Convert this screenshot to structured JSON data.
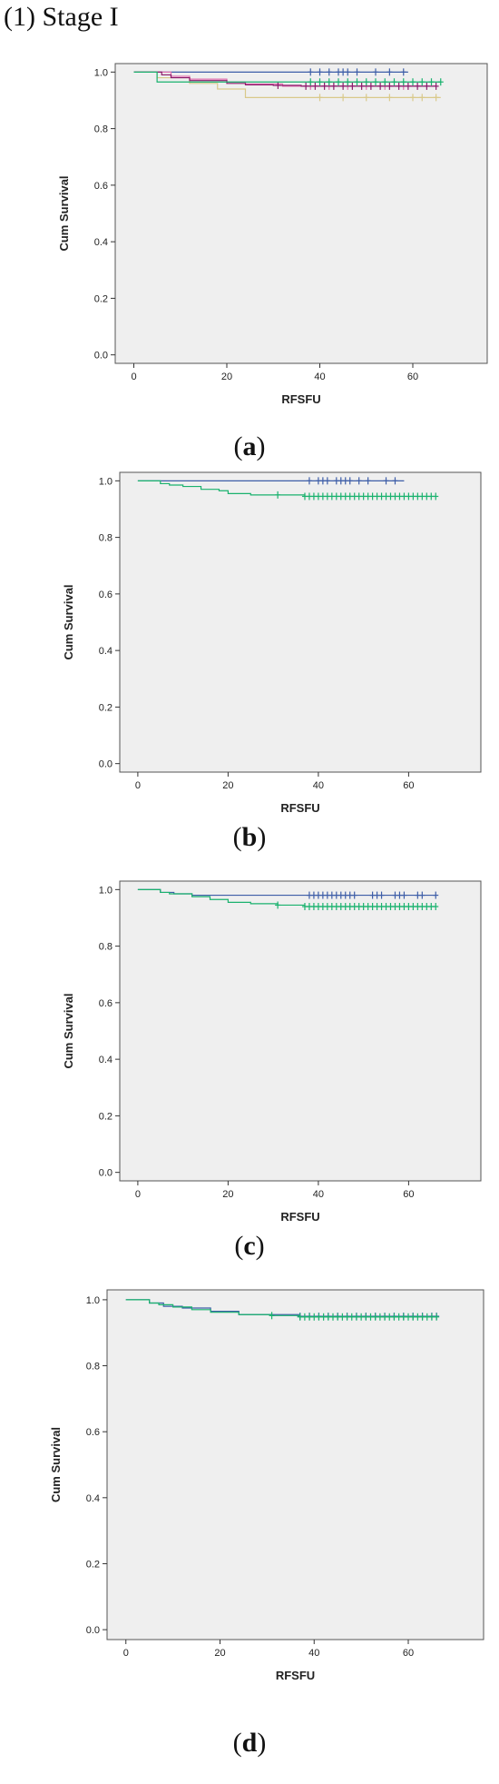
{
  "heading": "(1) Stage I",
  "colors": {
    "blue": "#3e5ea8",
    "green": "#1ab26e",
    "tan": "#d9c98a",
    "purple": "#8b1a6b",
    "pink": "#e070b0",
    "plot_bg": "#efefef",
    "frame": "#555555"
  },
  "chart_data": [
    {
      "type": "line",
      "caption_open": "(",
      "caption_letter": "a",
      "caption_close": ")",
      "xlabel": "RFSFU",
      "ylabel": "Cum Survival",
      "xlim": [
        -4,
        76
      ],
      "ylim": [
        -0.03,
        1.03
      ],
      "xticks": [
        0,
        20,
        40,
        60
      ],
      "yticks": [
        "0.0",
        "0.2",
        "0.4",
        "0.6",
        "0.8",
        "1.0"
      ],
      "series": [
        {
          "color": "#3e5ea8",
          "x": [
            0,
            59
          ],
          "y": [
            1.0,
            1.0
          ],
          "censor": [
            38,
            40,
            42,
            44,
            45,
            46,
            48,
            52,
            55,
            58
          ]
        },
        {
          "color": "#d9c98a",
          "x": [
            0,
            5,
            12,
            18,
            24,
            66
          ],
          "y": [
            1.0,
            0.98,
            0.96,
            0.94,
            0.91,
            0.91
          ],
          "censor": [
            40,
            45,
            50,
            55,
            60,
            62,
            65
          ]
        },
        {
          "color": "#e070b0",
          "x": [
            0,
            8,
            12,
            20,
            24,
            32,
            62
          ],
          "y": [
            1.0,
            0.985,
            0.975,
            0.965,
            0.958,
            0.95,
            0.95
          ],
          "censor": [
            38,
            42,
            46,
            50,
            54,
            58
          ]
        },
        {
          "color": "#8b1a6b",
          "x": [
            0,
            6,
            8,
            12,
            20,
            24,
            30,
            36,
            65
          ],
          "y": [
            1.0,
            0.99,
            0.98,
            0.97,
            0.96,
            0.955,
            0.953,
            0.95,
            0.95
          ],
          "censor": [
            31,
            37,
            39,
            41,
            43,
            45,
            47,
            49,
            51,
            53,
            55,
            57,
            59,
            61,
            63,
            65
          ]
        },
        {
          "color": "#1ab26e",
          "x": [
            0,
            5,
            66
          ],
          "y": [
            1.0,
            0.965,
            0.965
          ],
          "censor": [
            38,
            40,
            42,
            44,
            46,
            48,
            50,
            52,
            54,
            56,
            58,
            60,
            62,
            64,
            66
          ]
        }
      ]
    },
    {
      "type": "line",
      "caption_open": "(",
      "caption_letter": "b",
      "caption_close": ")",
      "xlabel": "RFSFU",
      "ylabel": "Cum Survival",
      "xlim": [
        -4,
        76
      ],
      "ylim": [
        -0.03,
        1.03
      ],
      "xticks": [
        0,
        20,
        40,
        60
      ],
      "yticks": [
        "0.0",
        "0.2",
        "0.4",
        "0.6",
        "0.8",
        "1.0"
      ],
      "series": [
        {
          "color": "#3e5ea8",
          "x": [
            0,
            59
          ],
          "y": [
            1.0,
            1.0
          ],
          "censor": [
            38,
            40,
            41,
            42,
            44,
            45,
            46,
            47,
            49,
            51,
            55,
            57
          ]
        },
        {
          "color": "#1ab26e",
          "x": [
            0,
            5,
            7,
            10,
            14,
            18,
            20,
            25,
            30,
            37,
            66
          ],
          "y": [
            1.0,
            0.99,
            0.985,
            0.98,
            0.97,
            0.965,
            0.955,
            0.95,
            0.95,
            0.945,
            0.945
          ],
          "censor": [
            31,
            37,
            38,
            39,
            40,
            41,
            42,
            43,
            44,
            45,
            46,
            47,
            48,
            49,
            50,
            51,
            52,
            53,
            54,
            55,
            56,
            57,
            58,
            59,
            60,
            61,
            62,
            63,
            64,
            65,
            66
          ]
        }
      ]
    },
    {
      "type": "line",
      "caption_open": "(",
      "caption_letter": "c",
      "caption_close": ")",
      "xlabel": "RFSFU",
      "ylabel": "Cum Survival",
      "xlim": [
        -4,
        76
      ],
      "ylim": [
        -0.03,
        1.03
      ],
      "xticks": [
        0,
        20,
        40,
        60
      ],
      "yticks": [
        "0.0",
        "0.2",
        "0.4",
        "0.6",
        "0.8",
        "1.0"
      ],
      "series": [
        {
          "color": "#3e5ea8",
          "x": [
            0,
            5,
            8,
            12,
            66
          ],
          "y": [
            1.0,
            0.99,
            0.985,
            0.98,
            0.98
          ],
          "censor": [
            38,
            39,
            40,
            41,
            42,
            43,
            44,
            45,
            46,
            47,
            48,
            52,
            53,
            54,
            57,
            58,
            59,
            62,
            63,
            66
          ]
        },
        {
          "color": "#1ab26e",
          "x": [
            0,
            5,
            7,
            12,
            16,
            20,
            25,
            31,
            37,
            66
          ],
          "y": [
            1.0,
            0.99,
            0.985,
            0.975,
            0.965,
            0.955,
            0.95,
            0.945,
            0.94,
            0.94
          ],
          "censor": [
            31,
            37,
            38,
            39,
            40,
            41,
            42,
            43,
            44,
            45,
            46,
            47,
            48,
            49,
            50,
            51,
            52,
            53,
            54,
            55,
            56,
            57,
            58,
            59,
            60,
            61,
            62,
            63,
            64,
            65,
            66
          ]
        }
      ]
    },
    {
      "type": "line",
      "caption_open": "(",
      "caption_letter": "d",
      "caption_close": ")",
      "xlabel": "RFSFU",
      "ylabel": "Cum Survival",
      "xlim": [
        -4,
        76
      ],
      "ylim": [
        -0.03,
        1.03
      ],
      "xticks": [
        0,
        20,
        40,
        60
      ],
      "yticks": [
        "0.0",
        "0.2",
        "0.4",
        "0.6",
        "0.8",
        "1.0"
      ],
      "series": [
        {
          "color": "#3e5ea8",
          "x": [
            0,
            5,
            8,
            12,
            18,
            24,
            37,
            66
          ],
          "y": [
            1.0,
            0.99,
            0.98,
            0.975,
            0.965,
            0.955,
            0.95,
            0.95
          ],
          "censor": [
            37,
            39,
            41,
            43,
            45,
            47,
            49,
            51,
            53,
            55,
            57,
            59,
            61,
            63,
            65,
            66
          ]
        },
        {
          "color": "#1ab26e",
          "x": [
            0,
            5,
            7,
            10,
            14,
            18,
            24,
            31,
            37,
            66
          ],
          "y": [
            1.0,
            0.99,
            0.985,
            0.978,
            0.97,
            0.962,
            0.955,
            0.952,
            0.948,
            0.948
          ],
          "censor": [
            31,
            37,
            38,
            39,
            40,
            41,
            42,
            43,
            44,
            45,
            46,
            47,
            48,
            49,
            50,
            51,
            52,
            53,
            54,
            55,
            56,
            57,
            58,
            59,
            60,
            61,
            62,
            63,
            64,
            65,
            66
          ]
        }
      ]
    }
  ]
}
